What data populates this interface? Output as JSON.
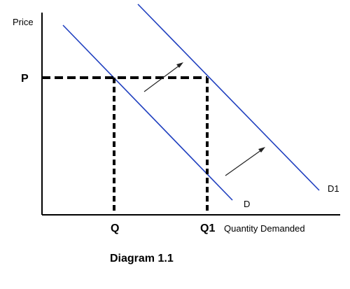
{
  "chart_data": {
    "type": "line",
    "caption": "Diagram 1.1",
    "xlabel": "Quantity Demanded",
    "ylabel": "Price",
    "y_tick_labels": [
      "P"
    ],
    "x_tick_labels": [
      "Q",
      "Q1"
    ],
    "series": [
      {
        "name": "D",
        "color": "#1f3fbf"
      },
      {
        "name": "D1",
        "color": "#1f3fbf"
      }
    ],
    "grid": false
  }
}
